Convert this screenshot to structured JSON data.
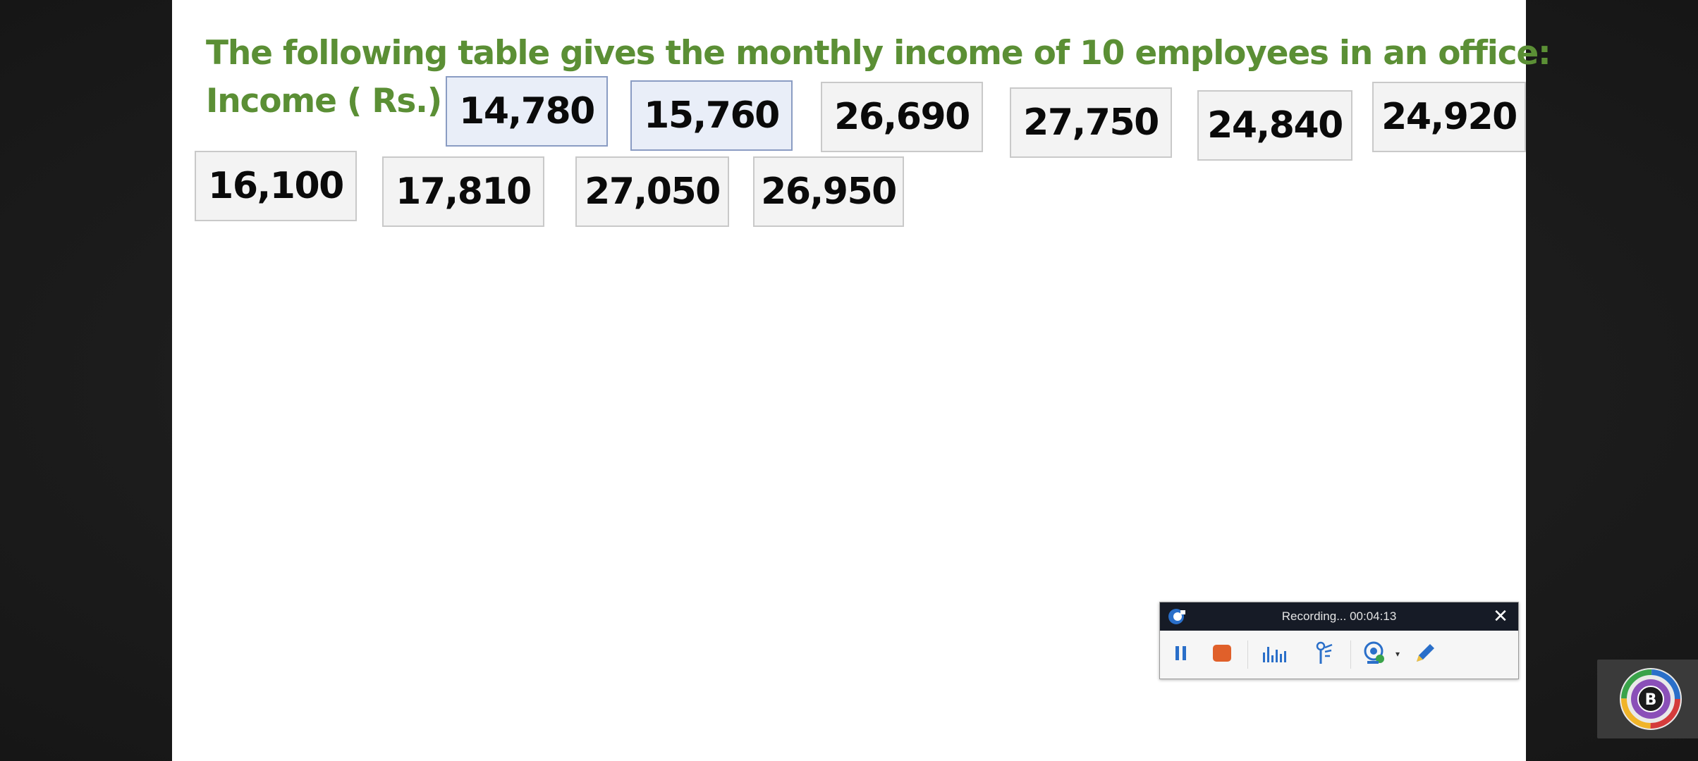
{
  "slide": {
    "heading": "The following table gives the monthly income of 10 employees in an office:",
    "row_label": "Income ( Rs.)",
    "incomes": [
      "14,780",
      "15,760",
      "26,690",
      "27,750",
      "24,840",
      "24,920",
      "16,100",
      "17,810",
      "27,050",
      "26,950"
    ],
    "selected_cells": [
      0,
      1
    ]
  },
  "recorder": {
    "status": "Recording... 00:04:13",
    "close_glyph": "✕",
    "tools": [
      {
        "icon": "pause-icon"
      },
      {
        "icon": "stop-icon"
      },
      {
        "icon": "audio-level-icon"
      },
      {
        "icon": "cursor-effects-icon"
      },
      {
        "icon": "webcam-icon"
      },
      {
        "icon": "pen-icon"
      }
    ],
    "colors": {
      "titlebar": "#161b26",
      "accent_blue": "#2a6fc9",
      "stop_orange": "#e0602a"
    }
  },
  "watermark": {
    "icon": "circular-b-logo-icon",
    "letter": "B"
  },
  "colors": {
    "heading_green": "#5b8f35",
    "cell_bg": "#f3f3f3",
    "cell_selected_bg": "#e9eef8"
  }
}
